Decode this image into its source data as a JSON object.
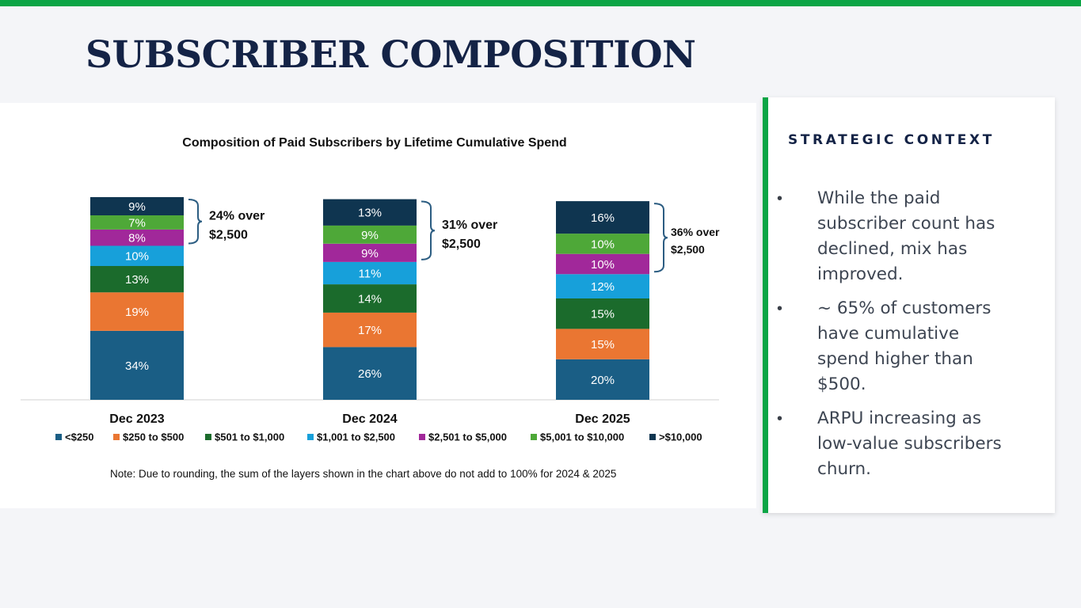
{
  "page": {
    "title": "SUBSCRIBER COMPOSITION"
  },
  "chart_data": {
    "type": "bar",
    "stacked": true,
    "title": "Composition of Paid Subscribers by Lifetime Cumulative Spend",
    "categories": [
      "Dec 2023",
      "Dec 2024",
      "Dec 2025"
    ],
    "series": [
      {
        "name": "<$250",
        "color": "#1a5e85",
        "values": [
          34,
          26,
          20
        ]
      },
      {
        "name": "$250 to $500",
        "color": "#ea7632",
        "values": [
          19,
          17,
          15
        ]
      },
      {
        "name": "$501 to $1,000",
        "color": "#1b6b2c",
        "values": [
          13,
          14,
          15
        ]
      },
      {
        "name": "$1,001 to $2,500",
        "color": "#17a0da",
        "values": [
          10,
          11,
          12
        ]
      },
      {
        "name": "$2,501 to $5,000",
        "color": "#a1289a",
        "values": [
          8,
          9,
          10
        ]
      },
      {
        "name": "$5,001 to $10,000",
        "color": "#4ea838",
        "values": [
          7,
          9,
          10
        ]
      },
      {
        "name": ">$10,000",
        "color": "#0f3550",
        "values": [
          9,
          13,
          16
        ]
      }
    ],
    "value_suffix": "%",
    "legend": "bottom",
    "grid": false,
    "annotations": [
      {
        "line1": "24% over",
        "line2": "$2,500"
      },
      {
        "line1": "31% over",
        "line2": "$2,500"
      },
      {
        "line1": "36% over",
        "line2": "$2,500"
      }
    ],
    "note": "Note:  Due to rounding, the sum of the layers shown in the chart above do not add to 100% for 2024 & 2025"
  },
  "context": {
    "heading": "STRATEGIC CONTEXT",
    "bullet_symbol": "•",
    "bullets": [
      "While the paid subscriber count has declined, mix has improved.",
      "~ 65% of customers have cumulative spend higher than $500.",
      "ARPU increasing as low-value subscribers churn."
    ]
  },
  "colors": {
    "accent_green": "#0ca546",
    "title_navy": "#142346"
  }
}
